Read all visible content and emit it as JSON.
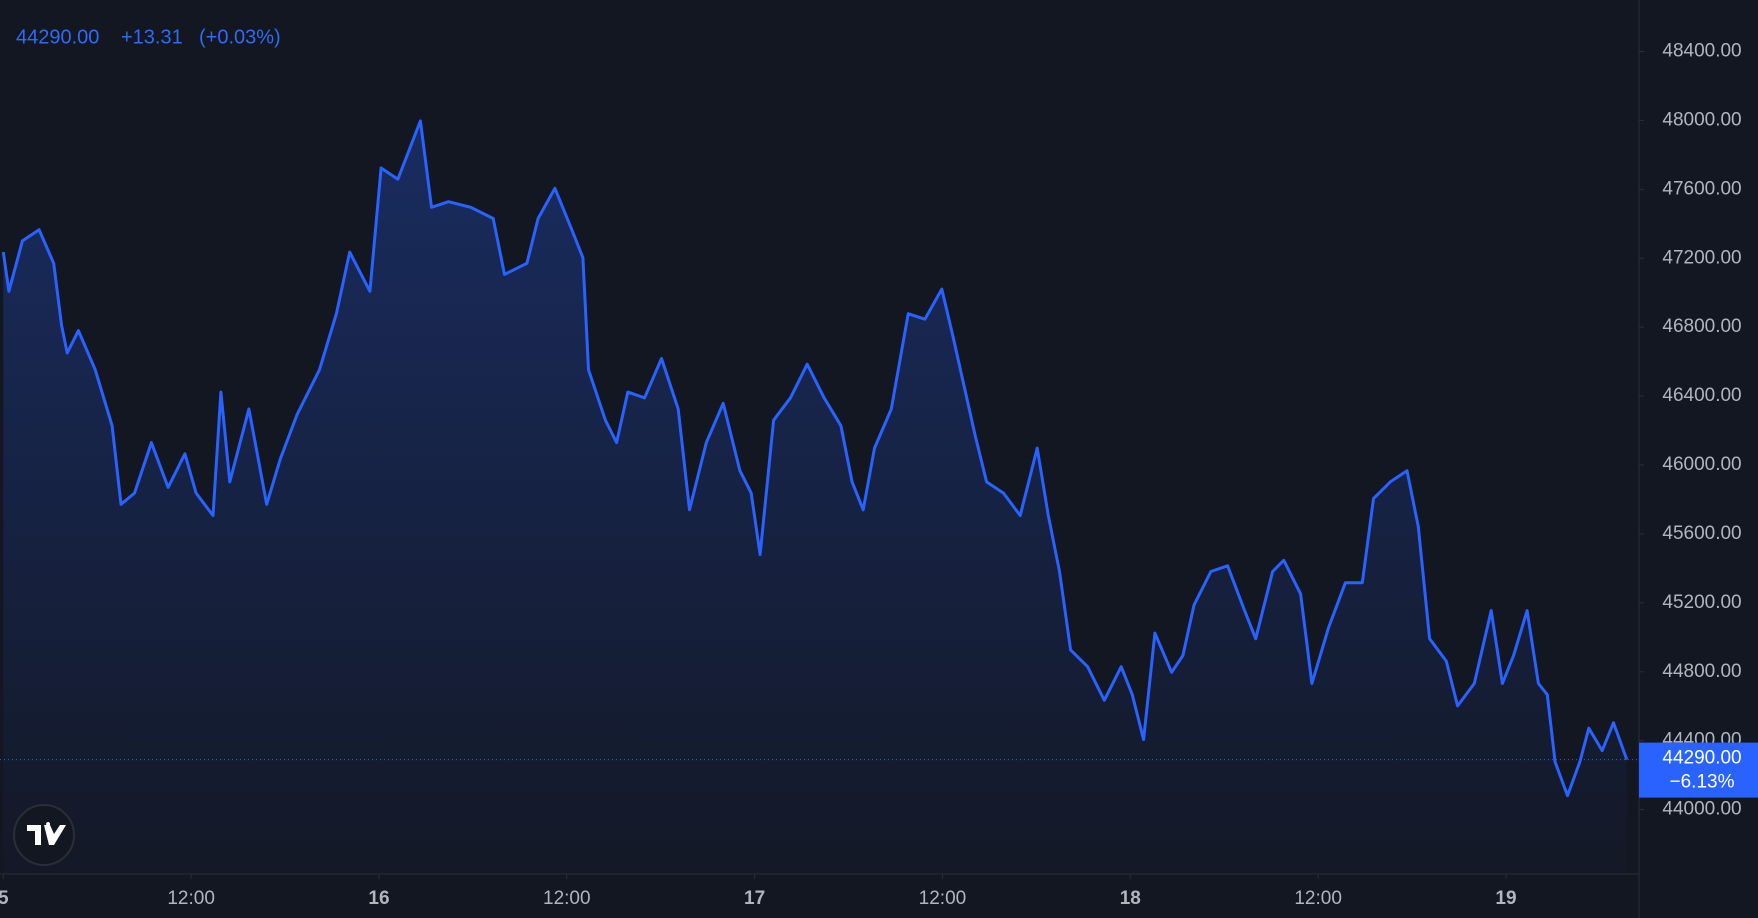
{
  "chart_data": {
    "type": "line",
    "header": {
      "price": "44290.00",
      "change": "+13.31",
      "change_pct": "(+0.03%)"
    },
    "price_label": {
      "price": "44290.00",
      "change": "−6.13%"
    },
    "last_value": 44290,
    "color": "#2962ff",
    "grid": false,
    "x": [
      0,
      0.36,
      1.22,
      2.29,
      3.22,
      3.72,
      4.08,
      4.8,
      5.87,
      6.95,
      7.52,
      8.38,
      9.46,
      10.53,
      11.6,
      12.32,
      13.4,
      13.9,
      14.47,
      15.69,
      16.83,
      17.69,
      18.77,
      20.2,
      21.28,
      22.13,
      23.42,
      24.14,
      25.21,
      26.65,
      27.36,
      28.44,
      29.87,
      31.3,
      32.02,
      33.45,
      34.17,
      35.24,
      36.32,
      37.03,
      37.39,
      38.47,
      39.18,
      39.9,
      40.97,
      42.05,
      43.12,
      43.84,
      44.91,
      45.99,
      47.06,
      47.78,
      48.35,
      49.21,
      50.29,
      51.36,
      52.44,
      53.51,
      54.23,
      54.94,
      55.66,
      56.73,
      57.81,
      58.88,
      59.96,
      60.67,
      61.39,
      62.11,
      62.82,
      63.9,
      64.97,
      66.05,
      66.76,
      67.48,
      68.19,
      69.27,
      70.34,
      71.42,
      72.13,
      72.85,
      73.57,
      74.64,
      75.36,
      76.07,
      77.15,
      78.22,
      79.3,
      80.01,
      81.09,
      81.81,
      82.88,
      83.6,
      84.67,
      85.74,
      86.82,
      87.54,
      88.61,
      89.68,
      90.4,
      91.12,
      92.19,
      92.91,
      93.98,
      95.06,
      95.77,
      96.49,
      97.35,
      98.07,
      98.64,
      99.14,
      99.93,
      100.72,
      101.29,
      102.15,
      102.87,
      103.72
    ],
    "values": [
      47236,
      47008,
      47301,
      47366,
      47171,
      46813,
      46650,
      46780,
      46553,
      46228,
      45772,
      45837,
      46130,
      45870,
      46065,
      45837,
      45707,
      46423,
      45902,
      46325,
      45772,
      46033,
      46293,
      46553,
      46878,
      47236,
      47008,
      47724,
      47659,
      47997,
      47496,
      47528,
      47496,
      47431,
      47106,
      47171,
      47431,
      47606,
      47366,
      47203,
      46553,
      46260,
      46130,
      46423,
      46390,
      46618,
      46325,
      45740,
      46130,
      46358,
      45967,
      45837,
      45480,
      46260,
      46390,
      46585,
      46390,
      46228,
      45902,
      45740,
      46098,
      46325,
      46878,
      46846,
      47021,
      46748,
      46455,
      46163,
      45902,
      45837,
      45707,
      46098,
      45707,
      45382,
      44927,
      44829,
      44634,
      44829,
      44667,
      44406,
      45024,
      44797,
      44894,
      45187,
      45382,
      45415,
      45155,
      44992,
      45382,
      45447,
      45252,
      44732,
      45057,
      45317,
      45317,
      45805,
      45902,
      45967,
      45642,
      44992,
      44862,
      44602,
      44732,
      45155,
      44732,
      44894,
      45155,
      44732,
      44667,
      44276,
      44081,
      44276,
      44472,
      44342,
      44504,
      44290
    ],
    "xlim": [
      -0.21,
      104.5
    ],
    "ylim": [
      43626,
      48699
    ],
    "xticks": [
      {
        "value": 0,
        "label": "5"
      },
      {
        "value": 12,
        "label": "12:00"
      },
      {
        "value": 24,
        "label": "16"
      },
      {
        "value": 36,
        "label": "12:00"
      },
      {
        "value": 48,
        "label": "17"
      },
      {
        "value": 60,
        "label": "12:00"
      },
      {
        "value": 72,
        "label": "18"
      },
      {
        "value": 84,
        "label": "12:00"
      },
      {
        "value": 96,
        "label": "19"
      }
    ],
    "yticks": [
      {
        "value": 44000,
        "label": "44000.00"
      },
      {
        "value": 44400,
        "label": "44400.00"
      },
      {
        "value": 44800,
        "label": "44800.00"
      },
      {
        "value": 45200,
        "label": "45200.00"
      },
      {
        "value": 45600,
        "label": "45600.00"
      },
      {
        "value": 46000,
        "label": "46000.00"
      },
      {
        "value": 46400,
        "label": "46400.00"
      },
      {
        "value": 46800,
        "label": "46800.00"
      },
      {
        "value": 47200,
        "label": "47200.00"
      },
      {
        "value": 47600,
        "label": "47600.00"
      },
      {
        "value": 48000,
        "label": "48000.00"
      },
      {
        "value": 48400,
        "label": "48400.00"
      }
    ]
  }
}
